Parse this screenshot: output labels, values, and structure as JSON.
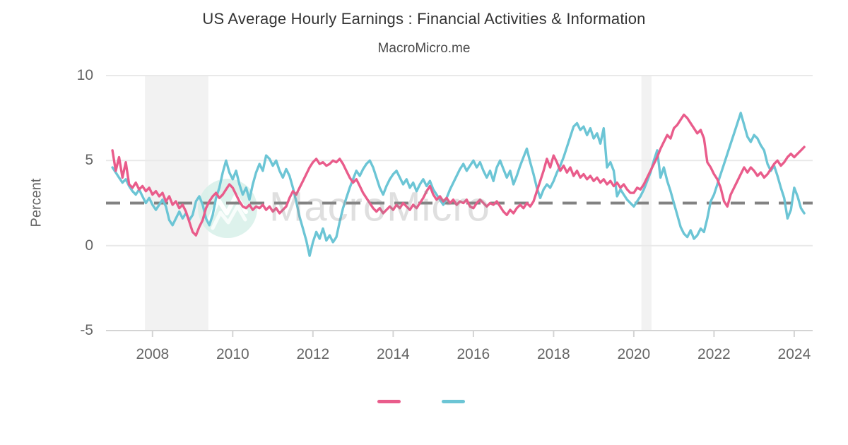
{
  "chart_data": {
    "type": "line",
    "title": "US Average Hourly Earnings : Financial Activities & Information",
    "subtitle": "MacroMicro.me",
    "ylabel": "Percent",
    "xlabel": "",
    "ylim": [
      -5,
      10
    ],
    "xlim": [
      2006.84,
      2024.46
    ],
    "grid": true,
    "legend_position": "bottom-center",
    "yticks": [
      {
        "label": "10",
        "value": 10
      },
      {
        "label": "5",
        "value": 5
      },
      {
        "label": "0",
        "value": 0
      },
      {
        "label": "-5",
        "value": -5
      }
    ],
    "xticks": [
      {
        "label": "2008",
        "value": 2008
      },
      {
        "label": "2010",
        "value": 2010
      },
      {
        "label": "2012",
        "value": 2012
      },
      {
        "label": "2014",
        "value": 2014
      },
      {
        "label": "2016",
        "value": 2016
      },
      {
        "label": "2018",
        "value": 2018
      },
      {
        "label": "2020",
        "value": 2020
      },
      {
        "label": "2022",
        "value": 2022
      },
      {
        "label": "2024",
        "value": 2024
      }
    ],
    "reference_line": {
      "value": 2.5,
      "style": "dashed",
      "color": "#828282"
    },
    "recession_bands": [
      {
        "from": 2007.81,
        "to": 2009.39
      },
      {
        "from": 2020.19,
        "to": 2020.44
      }
    ],
    "band_color": "#f2f2f2",
    "grid_color": "#e9e9e9",
    "axis_color": "#d4d4d4",
    "text_color": "#666666",
    "watermark": {
      "text": "MacroMicro",
      "logo": "macromicro-logo",
      "logo_color": "#d7f0e9"
    },
    "series": [
      {
        "id": "financial-activities",
        "legend_label": "",
        "color": "#e95c8b",
        "x_start": 2007.0,
        "x_step_months": 1,
        "values": [
          5.6,
          4.4,
          5.2,
          4.0,
          4.9,
          3.6,
          3.4,
          3.7,
          3.3,
          3.5,
          3.2,
          3.4,
          3.0,
          3.2,
          2.9,
          3.1,
          2.6,
          2.9,
          2.4,
          2.6,
          2.2,
          2.4,
          2.0,
          1.4,
          0.8,
          0.6,
          1.1,
          1.5,
          2.2,
          2.6,
          2.9,
          3.1,
          2.8,
          3.0,
          3.3,
          3.6,
          3.4,
          3.0,
          2.6,
          2.3,
          2.2,
          2.4,
          2.1,
          2.3,
          2.2,
          2.4,
          2.1,
          2.3,
          2.0,
          2.2,
          1.9,
          2.1,
          2.3,
          2.8,
          3.2,
          3.0,
          3.4,
          3.8,
          4.2,
          4.6,
          4.9,
          5.1,
          4.8,
          4.9,
          4.7,
          4.8,
          5.0,
          4.9,
          5.1,
          4.8,
          4.4,
          4.0,
          3.7,
          3.9,
          3.5,
          3.1,
          2.8,
          2.5,
          2.2,
          2.0,
          2.2,
          1.9,
          2.1,
          2.3,
          2.1,
          2.4,
          2.2,
          2.5,
          2.3,
          2.1,
          2.4,
          2.2,
          2.5,
          2.8,
          3.2,
          3.5,
          3.0,
          2.7,
          2.9,
          2.6,
          2.8,
          2.5,
          2.7,
          2.4,
          2.6,
          2.5,
          2.7,
          2.3,
          2.2,
          2.5,
          2.7,
          2.5,
          2.3,
          2.5,
          2.4,
          2.6,
          2.3,
          2.0,
          1.8,
          2.1,
          1.9,
          2.2,
          2.4,
          2.2,
          2.5,
          2.3,
          2.6,
          3.2,
          3.8,
          4.4,
          5.1,
          4.6,
          5.3,
          4.9,
          4.4,
          4.7,
          4.3,
          4.6,
          4.1,
          4.4,
          4.0,
          4.2,
          3.9,
          4.1,
          3.8,
          4.0,
          3.7,
          3.9,
          3.6,
          3.8,
          3.5,
          3.7,
          3.4,
          3.6,
          3.3,
          3.1,
          3.1,
          3.4,
          3.3,
          3.6,
          4.0,
          4.4,
          4.8,
          5.2,
          5.7,
          6.1,
          6.5,
          6.3,
          6.9,
          7.1,
          7.4,
          7.7,
          7.5,
          7.2,
          6.9,
          6.6,
          6.8,
          6.3,
          4.9,
          4.6,
          4.2,
          3.9,
          3.4,
          2.6,
          2.3,
          3.0,
          3.4,
          3.8,
          4.2,
          4.6,
          4.3,
          4.6,
          4.4,
          4.1,
          4.3,
          4.0,
          4.2,
          4.5,
          4.8,
          5.0,
          4.7,
          4.9,
          5.2,
          5.4,
          5.2,
          5.4,
          5.6,
          5.8
        ]
      },
      {
        "id": "information",
        "legend_label": "",
        "color": "#6cc5d5",
        "x_start": 2007.0,
        "x_step_months": 1,
        "values": [
          4.6,
          4.3,
          4.0,
          3.7,
          3.9,
          3.5,
          3.2,
          3.0,
          3.3,
          2.9,
          2.5,
          2.8,
          2.4,
          2.1,
          2.4,
          2.7,
          2.3,
          1.5,
          1.2,
          1.6,
          2.0,
          1.6,
          1.9,
          1.5,
          1.8,
          2.6,
          2.9,
          2.4,
          1.6,
          1.2,
          1.8,
          2.8,
          3.4,
          4.3,
          5.0,
          4.3,
          3.9,
          4.4,
          3.6,
          3.0,
          3.4,
          2.7,
          3.6,
          4.3,
          4.8,
          4.4,
          5.3,
          5.1,
          4.7,
          5.0,
          4.4,
          4.0,
          4.5,
          4.1,
          3.4,
          2.6,
          1.7,
          1.0,
          0.3,
          -0.6,
          0.2,
          0.8,
          0.4,
          1.0,
          0.3,
          0.6,
          0.2,
          0.5,
          1.4,
          2.2,
          2.8,
          3.4,
          3.9,
          4.4,
          4.1,
          4.5,
          4.8,
          5.0,
          4.6,
          4.0,
          3.4,
          3.0,
          3.5,
          3.9,
          4.2,
          4.4,
          4.0,
          3.6,
          3.9,
          3.4,
          3.7,
          3.2,
          3.6,
          3.9,
          3.5,
          3.8,
          3.3,
          3.0,
          2.7,
          2.4,
          2.8,
          3.3,
          3.7,
          4.1,
          4.5,
          4.8,
          4.4,
          4.7,
          5.0,
          4.6,
          4.9,
          4.4,
          4.0,
          4.4,
          3.8,
          4.6,
          5.0,
          4.5,
          4.0,
          4.4,
          3.6,
          4.1,
          4.7,
          5.2,
          5.7,
          4.9,
          4.2,
          3.4,
          2.8,
          3.3,
          3.6,
          3.4,
          3.8,
          4.3,
          4.7,
          5.2,
          5.8,
          6.4,
          7.0,
          7.2,
          6.8,
          7.0,
          6.5,
          6.9,
          6.3,
          6.6,
          6.0,
          6.9,
          4.6,
          4.9,
          4.4,
          2.9,
          3.3,
          3.0,
          2.7,
          2.5,
          2.3,
          2.6,
          2.9,
          3.3,
          3.8,
          4.3,
          5.0,
          5.6,
          4.0,
          4.6,
          3.8,
          3.2,
          2.5,
          1.8,
          1.1,
          0.7,
          0.5,
          0.9,
          0.4,
          0.6,
          1.0,
          0.8,
          1.6,
          2.6,
          3.0,
          3.6,
          4.2,
          4.8,
          5.4,
          6.0,
          6.6,
          7.2,
          7.8,
          7.1,
          6.4,
          6.1,
          6.5,
          6.3,
          5.9,
          5.6,
          4.8,
          4.4,
          4.7,
          4.1,
          3.4,
          2.8,
          1.6,
          2.1,
          3.4,
          2.9,
          2.2,
          1.9
        ]
      }
    ]
  }
}
